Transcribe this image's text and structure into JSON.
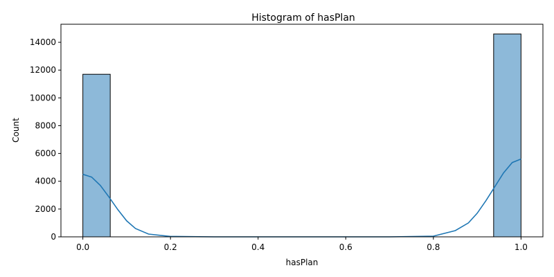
{
  "chart_data": {
    "type": "bar",
    "title": "Histogram of hasPlan",
    "xlabel": "hasPlan",
    "ylabel": "Count",
    "xlim": [
      -0.05,
      1.05
    ],
    "ylim": [
      0,
      15300
    ],
    "x_ticks": [
      0.0,
      0.2,
      0.4,
      0.6,
      0.8,
      1.0
    ],
    "x_tick_labels": [
      "0.0",
      "0.2",
      "0.4",
      "0.6",
      "0.8",
      "1.0"
    ],
    "y_ticks": [
      0,
      2000,
      4000,
      6000,
      8000,
      10000,
      12000,
      14000
    ],
    "y_tick_labels": [
      "0",
      "2000",
      "4000",
      "6000",
      "8000",
      "10000",
      "12000",
      "14000"
    ],
    "bins": [
      {
        "x0": 0.0,
        "x1": 0.0625,
        "count": 11700
      },
      {
        "x0": 0.9375,
        "x1": 1.0,
        "count": 14600
      }
    ],
    "kde": {
      "x": [
        0.0,
        0.02,
        0.04,
        0.06,
        0.08,
        0.1,
        0.12,
        0.15,
        0.2,
        0.3,
        0.5,
        0.7,
        0.8,
        0.85,
        0.88,
        0.9,
        0.92,
        0.94,
        0.96,
        0.98,
        1.0
      ],
      "y": [
        4500,
        4300,
        3700,
        2850,
        1950,
        1150,
        600,
        200,
        30,
        0,
        0,
        0,
        50,
        450,
        1000,
        1700,
        2600,
        3600,
        4600,
        5350,
        5600
      ]
    },
    "bar_color": "#8db9d9",
    "bar_edge_color": "#000000",
    "line_color": "#1f77b4",
    "grid": false
  }
}
